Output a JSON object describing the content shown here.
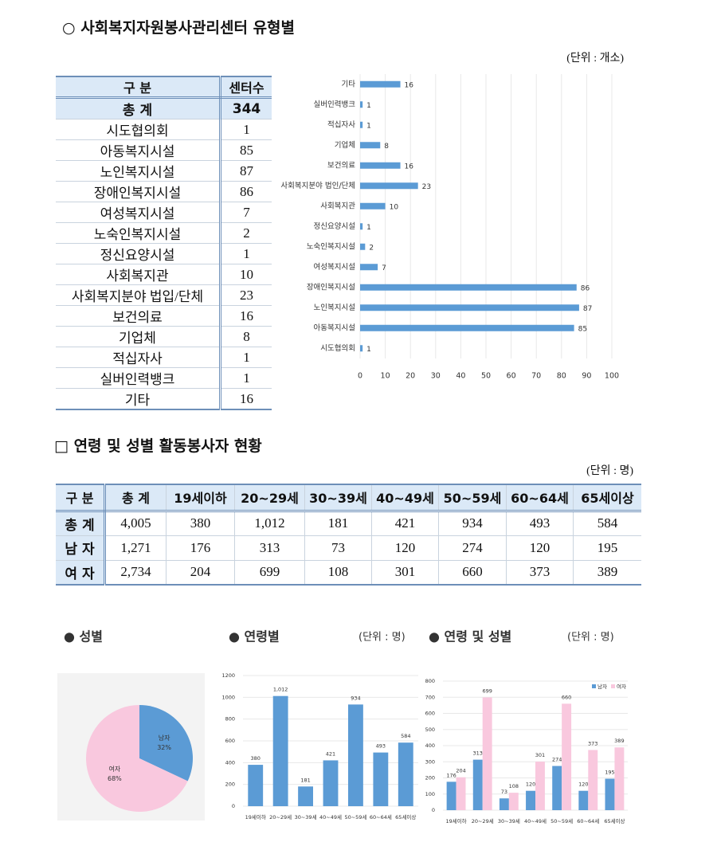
{
  "section1": {
    "title": "○ 사회복지자원봉사관리센터 유형별",
    "unit": "(단위 : 개소)",
    "table": {
      "header": [
        "구 분",
        "센터수"
      ],
      "rows": [
        [
          "총 계",
          "344"
        ],
        [
          "시도협의회",
          "1"
        ],
        [
          "아동복지시설",
          "85"
        ],
        [
          "노인복지시설",
          "87"
        ],
        [
          "장애인복지시설",
          "86"
        ],
        [
          "여성복지시설",
          "7"
        ],
        [
          "노숙인복지시설",
          "2"
        ],
        [
          "정신요양시설",
          "1"
        ],
        [
          "사회복지관",
          "10"
        ],
        [
          "사회복지분야 법입/단체",
          "23"
        ],
        [
          "보건의료",
          "16"
        ],
        [
          "기업체",
          "8"
        ],
        [
          "적십자사",
          "1"
        ],
        [
          "실버인력뱅크",
          "1"
        ],
        [
          "기타",
          "16"
        ]
      ]
    }
  },
  "section2": {
    "title": "□ 연령 및 성별 활동봉사자 현황",
    "unit": "(단위 : 명)",
    "table": {
      "header": [
        "구 분",
        "총 계",
        "19세이하",
        "20~29세",
        "30~39세",
        "40~49세",
        "50~59세",
        "60~64세",
        "65세이상"
      ],
      "rows": [
        [
          "총 계",
          "4,005",
          "380",
          "1,012",
          "181",
          "421",
          "934",
          "493",
          "584"
        ],
        [
          "남 자",
          "1,271",
          "176",
          "313",
          "73",
          "120",
          "274",
          "120",
          "195"
        ],
        [
          "여 자",
          "2,734",
          "204",
          "699",
          "108",
          "301",
          "660",
          "373",
          "389"
        ]
      ]
    }
  },
  "chart_data": [
    {
      "type": "bar",
      "orientation": "horizontal",
      "categories": [
        "기타",
        "실버인력뱅크",
        "적십자사",
        "기업체",
        "보건의료",
        "사회복지분야 법인/단체",
        "사회복지관",
        "정신요양시설",
        "노숙인복지시설",
        "여성복지시설",
        "장애인복지시설",
        "노인복지시설",
        "아동복지시설",
        "시도협의회"
      ],
      "values": [
        16,
        1,
        1,
        8,
        16,
        23,
        10,
        1,
        2,
        7,
        86,
        87,
        85,
        1
      ],
      "color": "#5b9bd5",
      "xlim": [
        0,
        100
      ],
      "xticks": [
        0,
        10,
        20,
        30,
        40,
        50,
        60,
        70,
        80,
        90,
        100
      ],
      "grid": true
    },
    {
      "type": "pie",
      "title": "● 성별",
      "categories": [
        "남자",
        "여자"
      ],
      "values": [
        32,
        68
      ],
      "value_labels": [
        "32%",
        "68%"
      ],
      "colors": [
        "#5b9bd5",
        "#f9c8de"
      ]
    },
    {
      "type": "bar",
      "title": "● 연령별",
      "unit": "(단위 : 명)",
      "categories": [
        "19세이하",
        "20~29세",
        "30~39세",
        "40~49세",
        "50~59세",
        "60~64세",
        "65세이상"
      ],
      "values": [
        380,
        1012,
        181,
        421,
        934,
        493,
        584
      ],
      "value_labels": [
        "380",
        "1,012",
        "181",
        "421",
        "934",
        "493",
        "584"
      ],
      "color": "#5b9bd5",
      "ylim": [
        0,
        1200
      ],
      "yticks": [
        0,
        200,
        400,
        600,
        800,
        1000,
        1200
      ],
      "grid": true
    },
    {
      "type": "bar",
      "title": "● 연령 및 성별",
      "unit": "(단위 : 명)",
      "categories": [
        "19세이하",
        "20~29세",
        "30~39세",
        "40~49세",
        "50~59세",
        "60~64세",
        "65세이상"
      ],
      "series": [
        {
          "name": "남자",
          "color": "#5b9bd5",
          "values": [
            176,
            313,
            73,
            120,
            274,
            120,
            195
          ]
        },
        {
          "name": "여자",
          "color": "#f9c8de",
          "values": [
            204,
            699,
            108,
            301,
            660,
            373,
            389
          ]
        }
      ],
      "ylim": [
        0,
        800
      ],
      "yticks": [
        0,
        100,
        200,
        300,
        400,
        500,
        600,
        700,
        800
      ],
      "grid": true,
      "legend": "top-right"
    }
  ]
}
